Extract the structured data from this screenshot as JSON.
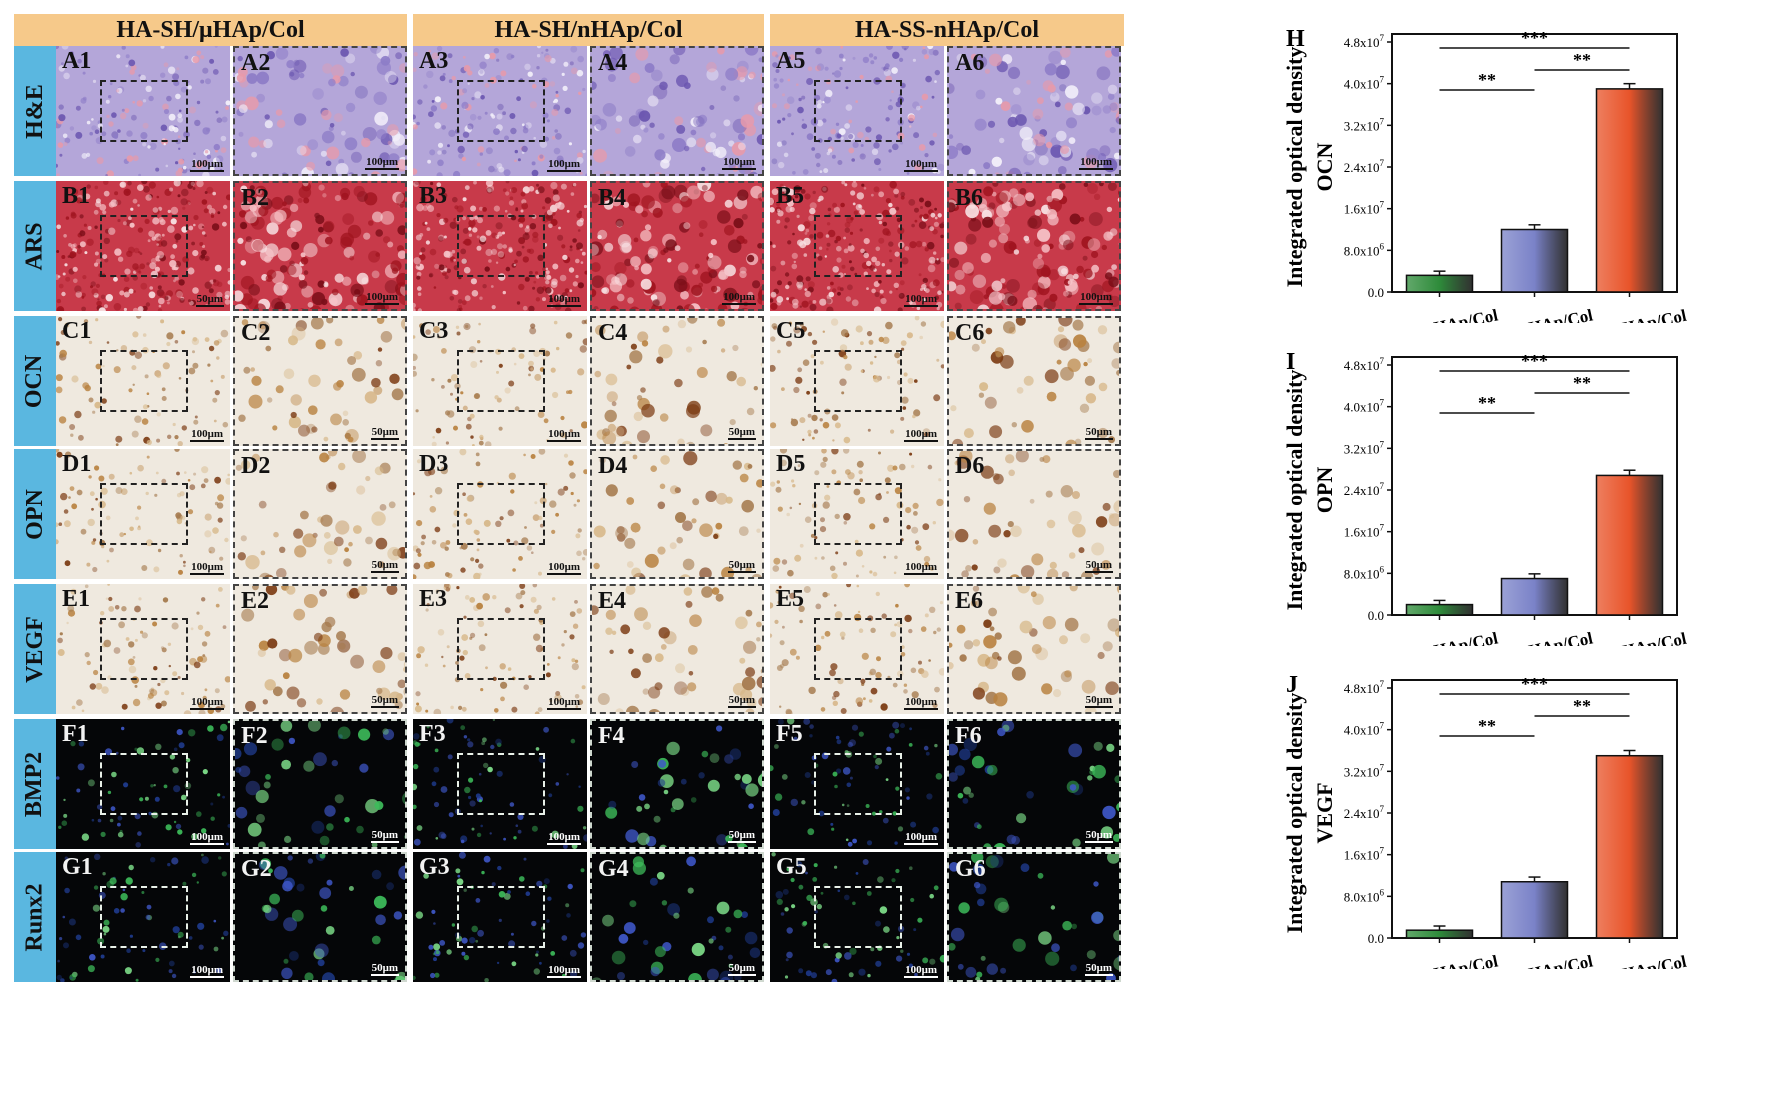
{
  "columns": [
    "HA-SH/μHAp/Col",
    "HA-SH/nHAp/Col",
    "HA-SS-nHAp/Col"
  ],
  "rows": [
    {
      "stain": "H&E",
      "kind": "he",
      "panels": [
        "A1",
        "A2",
        "A3",
        "A4",
        "A5",
        "A6"
      ],
      "scales": [
        "100μm",
        "100μm",
        "100μm",
        "100μm",
        "100μm",
        "100μm"
      ]
    },
    {
      "stain": "ARS",
      "kind": "ars",
      "panels": [
        "B1",
        "B2",
        "B3",
        "B4",
        "B5",
        "B6"
      ],
      "scales": [
        "50μm",
        "100μm",
        "100μm",
        "100μm",
        "100μm",
        "100μm"
      ]
    },
    {
      "stain": "OCN",
      "kind": "ihc",
      "panels": [
        "C1",
        "C2",
        "C3",
        "C4",
        "C5",
        "C6"
      ],
      "scales": [
        "100μm",
        "50μm",
        "100μm",
        "50μm",
        "100μm",
        "50μm"
      ]
    },
    {
      "stain": "OPN",
      "kind": "ihc",
      "panels": [
        "D1",
        "D2",
        "D3",
        "D4",
        "D5",
        "D6"
      ],
      "scales": [
        "100μm",
        "50μm",
        "100μm",
        "50μm",
        "100μm",
        "50μm"
      ]
    },
    {
      "stain": "VEGF",
      "kind": "ihc",
      "panels": [
        "E1",
        "E2",
        "E3",
        "E4",
        "E5",
        "E6"
      ],
      "scales": [
        "100μm",
        "50μm",
        "100μm",
        "50μm",
        "100μm",
        "50μm"
      ]
    },
    {
      "stain": "BMP2",
      "kind": "fluor",
      "panels": [
        "F1",
        "F2",
        "F3",
        "F4",
        "F5",
        "F6"
      ],
      "scales": [
        "100μm",
        "50μm",
        "100μm",
        "50μm",
        "100μm",
        "50μm"
      ]
    },
    {
      "stain": "Runx2",
      "kind": "fluor",
      "panels": [
        "G1",
        "G2",
        "G3",
        "G4",
        "G5",
        "G6"
      ],
      "scales": [
        "100μm",
        "50μm",
        "100μm",
        "50μm",
        "100μm",
        "50μm"
      ]
    }
  ],
  "colors": {
    "header_bg": "#f6c98a",
    "row_label_bg": "#5ab7e0",
    "bar_green": "#2e8b3a",
    "bar_blue": "#7a82c8",
    "bar_orange": "#e8542a"
  },
  "chart_data": [
    {
      "type": "bar",
      "panel_letter": "H",
      "ylabel": "Integrated optical density",
      "marker": "OCN",
      "categories": [
        "HA-SH/μHAp/Col",
        "HA-SH/nHAp/Col",
        "HA-SS-nHAp/Col"
      ],
      "values": [
        3200000,
        12000000,
        39000000
      ],
      "errors": [
        800000,
        900000,
        1000000
      ],
      "ylim": [
        0,
        48000000
      ],
      "yticks": [
        "0.0",
        "8.0x10^6",
        "1.6x10^7",
        "2.4x10^7",
        "3.2x10^7",
        "4.0x10^7",
        "4.8x10^7"
      ],
      "significance": [
        {
          "from": 0,
          "to": 1,
          "label": "**"
        },
        {
          "from": 1,
          "to": 2,
          "label": "**"
        },
        {
          "from": 0,
          "to": 2,
          "label": "***"
        }
      ]
    },
    {
      "type": "bar",
      "panel_letter": "I",
      "ylabel": "Integrated optical density",
      "marker": "OPN",
      "categories": [
        "HA-SH/μHAp/Col",
        "HA-SH/nHAp/Col",
        "HA-SS-nHAp/Col"
      ],
      "values": [
        2000000,
        7000000,
        26800000
      ],
      "errors": [
        800000,
        900000,
        1000000
      ],
      "ylim": [
        0,
        48000000
      ],
      "yticks": [
        "0.0",
        "8.0x10^6",
        "1.6x10^7",
        "2.4x10^7",
        "3.2x10^7",
        "4.0x10^7",
        "4.8x10^7"
      ],
      "significance": [
        {
          "from": 0,
          "to": 1,
          "label": "**"
        },
        {
          "from": 1,
          "to": 2,
          "label": "**"
        },
        {
          "from": 0,
          "to": 2,
          "label": "***"
        }
      ]
    },
    {
      "type": "bar",
      "panel_letter": "J",
      "ylabel": "Integrated optical density",
      "marker": "VEGF",
      "categories": [
        "HA-SH/μHAp/Col",
        "HA-SH/nHAp/Col",
        "HA-SS-nHAp/Col"
      ],
      "values": [
        1500000,
        10800000,
        35000000
      ],
      "errors": [
        800000,
        900000,
        1000000
      ],
      "ylim": [
        0,
        48000000
      ],
      "yticks": [
        "0.0",
        "8.0x10^6",
        "1.6x10^7",
        "2.4x10^7",
        "3.2x10^7",
        "4.0x10^7",
        "4.8x10^7"
      ],
      "significance": [
        {
          "from": 0,
          "to": 1,
          "label": "**"
        },
        {
          "from": 1,
          "to": 2,
          "label": "**"
        },
        {
          "from": 0,
          "to": 2,
          "label": "***"
        }
      ]
    }
  ]
}
